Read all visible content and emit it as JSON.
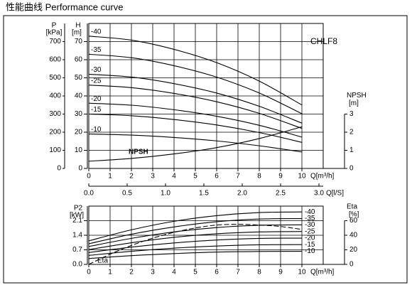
{
  "chart_data": [
    {
      "type": "line",
      "title": "性能曲线  Performance curve",
      "model": "CHLF8",
      "x": [
        0,
        2,
        4,
        6,
        8,
        10
      ],
      "xlim": [
        0,
        11
      ],
      "xticks": [
        0,
        1,
        2,
        3,
        4,
        5,
        6,
        7,
        8,
        9,
        10
      ],
      "xlabel": "Q[m³/h]",
      "x2lim": [
        0,
        3.0556
      ],
      "x2ticks": [
        {
          "value": 0,
          "label": "0.0"
        },
        0.5,
        {
          "value": 1,
          "label": "1.0"
        },
        1.5,
        {
          "value": 2,
          "label": "2.0"
        },
        2.5,
        {
          "value": 3,
          "label": "3.0"
        }
      ],
      "x2label": "Q[l/S]",
      "ylim": [
        0,
        80
      ],
      "yticks": [
        0,
        10,
        20,
        30,
        40,
        50,
        60,
        70
      ],
      "ylabel": [
        "H",
        "[m]"
      ],
      "p_axis": {
        "label": [
          "P",
          "[kPa]"
        ],
        "lim": [
          0,
          800
        ],
        "ticks": [
          0,
          100,
          200,
          300,
          400,
          500,
          600,
          700
        ]
      },
      "y2lim": [
        0,
        8
      ],
      "y2ticks": [
        0,
        1,
        2,
        3
      ],
      "y2label": [
        "NPSH",
        "[m]"
      ],
      "grid": true,
      "series": [
        {
          "name": "-40",
          "color": "#000000",
          "values": [
            73,
            70.8,
            65.7,
            58.4,
            48.2,
            35
          ]
        },
        {
          "name": "-35",
          "color": "#000000",
          "values": [
            63,
            61.1,
            56.7,
            50.4,
            41.6,
            30.2
          ]
        },
        {
          "name": "-30",
          "color": "#000000",
          "values": [
            52,
            50.4,
            46.8,
            41.6,
            34.3,
            25
          ]
        },
        {
          "name": "-25",
          "color": "#000000",
          "values": [
            46,
            44.6,
            41.4,
            36.8,
            30.4,
            22.1
          ]
        },
        {
          "name": "-20",
          "color": "#000000",
          "values": [
            36,
            34.9,
            32.4,
            28.8,
            23.8,
            17.3
          ]
        },
        {
          "name": "-15",
          "color": "#000000",
          "values": [
            30,
            29.1,
            27,
            24,
            19.8,
            14.4
          ]
        },
        {
          "name": "-10",
          "color": "#000000",
          "values": [
            19,
            18.4,
            17.1,
            15.2,
            12.5,
            9.1
          ]
        },
        {
          "name": "NPSH",
          "color": "#000000",
          "axis": "y2",
          "values": [
            0.4,
            0.55,
            0.8,
            1.15,
            1.65,
            2.3
          ]
        }
      ]
    },
    {
      "type": "line",
      "x": [
        0,
        2,
        4,
        6,
        8,
        10
      ],
      "xlim": [
        0,
        11
      ],
      "xticks": [
        0,
        1,
        2,
        3,
        4,
        5,
        6,
        7,
        8,
        9,
        10
      ],
      "xlabel": "Q[m³/h]",
      "ylim": [
        0,
        2.8
      ],
      "yticks": [
        {
          "value": 0,
          "label": "0.0"
        },
        0.7,
        1.4,
        2.1
      ],
      "ylabel": [
        "P2",
        "[kW]"
      ],
      "y2lim": [
        0,
        80
      ],
      "y2ticks": [
        0,
        20,
        40,
        60
      ],
      "y2label": [
        "Eta",
        "[%]"
      ],
      "grid": true,
      "series": [
        {
          "name": "-40",
          "color": "#000000",
          "values": [
            1.13,
            1.66,
            2.07,
            2.34,
            2.49,
            2.52
          ]
        },
        {
          "name": "-35",
          "color": "#000000",
          "values": [
            0.99,
            1.45,
            1.8,
            2.05,
            2.18,
            2.2
          ]
        },
        {
          "name": "-30",
          "color": "#000000",
          "values": [
            0.86,
            1.25,
            1.56,
            1.77,
            1.88,
            1.9
          ]
        },
        {
          "name": "-25",
          "color": "#000000",
          "values": [
            0.71,
            1.04,
            1.3,
            1.47,
            1.56,
            1.58
          ]
        },
        {
          "name": "-20",
          "color": "#000000",
          "values": [
            0.57,
            0.83,
            1.03,
            1.17,
            1.25,
            1.26
          ]
        },
        {
          "name": "-15",
          "color": "#000000",
          "values": [
            0.43,
            0.63,
            0.78,
            0.88,
            0.94,
            0.95
          ]
        },
        {
          "name": "-10",
          "color": "#000000",
          "values": [
            0.28,
            0.42,
            0.52,
            0.59,
            0.62,
            0.63
          ]
        },
        {
          "name": "Eta",
          "color": "#000000",
          "axis": "y2",
          "dash": true,
          "x": [
            0,
            1,
            2,
            3,
            4,
            5,
            6,
            7,
            8,
            9,
            10
          ],
          "values": [
            0,
            14,
            26,
            36,
            44,
            50,
            54,
            55,
            54,
            52,
            48
          ]
        }
      ]
    }
  ]
}
